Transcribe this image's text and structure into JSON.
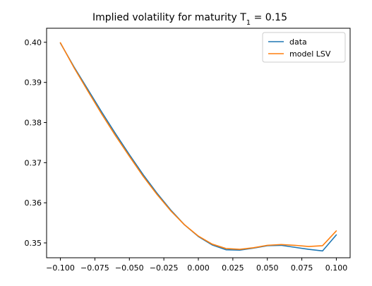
{
  "chart_data": {
    "type": "line",
    "title_main": "Implied volatility for maturity T",
    "title_sub": "1",
    "title_tail": " = 0.15",
    "xlabel": "",
    "ylabel": "",
    "xlim": [
      -0.11,
      0.11
    ],
    "ylim": [
      0.3463,
      0.4035
    ],
    "grid": false,
    "legend_position": "top-right",
    "x_ticks": [
      -0.1,
      -0.075,
      -0.05,
      -0.025,
      0.0,
      0.025,
      0.05,
      0.075,
      0.1
    ],
    "x_tick_labels": [
      "−0.100",
      "−0.075",
      "−0.050",
      "−0.025",
      "0.000",
      "0.025",
      "0.050",
      "0.075",
      "0.100"
    ],
    "y_ticks": [
      0.35,
      0.36,
      0.37,
      0.38,
      0.39,
      0.4
    ],
    "y_tick_labels": [
      "0.35",
      "0.36",
      "0.37",
      "0.38",
      "0.39",
      "0.40"
    ],
    "x": [
      -0.1,
      -0.09,
      -0.08,
      -0.07,
      -0.06,
      -0.05,
      -0.04,
      -0.03,
      -0.02,
      -0.01,
      0.0,
      0.01,
      0.02,
      0.03,
      0.04,
      0.05,
      0.06,
      0.07,
      0.08,
      0.09,
      0.1
    ],
    "series": [
      {
        "name": "data",
        "color": "#1f77b4",
        "values": [
          0.3998,
          0.3938,
          0.3882,
          0.3826,
          0.3772,
          0.372,
          0.367,
          0.3624,
          0.3582,
          0.3545,
          0.3516,
          0.3495,
          0.3483,
          0.3482,
          0.3487,
          0.3493,
          0.3494,
          0.3489,
          0.3484,
          0.348,
          0.352
        ]
      },
      {
        "name": "model LSV",
        "color": "#ff7f0e",
        "values": [
          0.3999,
          0.3936,
          0.3878,
          0.3821,
          0.3767,
          0.3716,
          0.3666,
          0.3621,
          0.358,
          0.3545,
          0.3517,
          0.3497,
          0.3486,
          0.3484,
          0.3488,
          0.3494,
          0.3496,
          0.3494,
          0.3491,
          0.3493,
          0.353
        ]
      }
    ]
  }
}
